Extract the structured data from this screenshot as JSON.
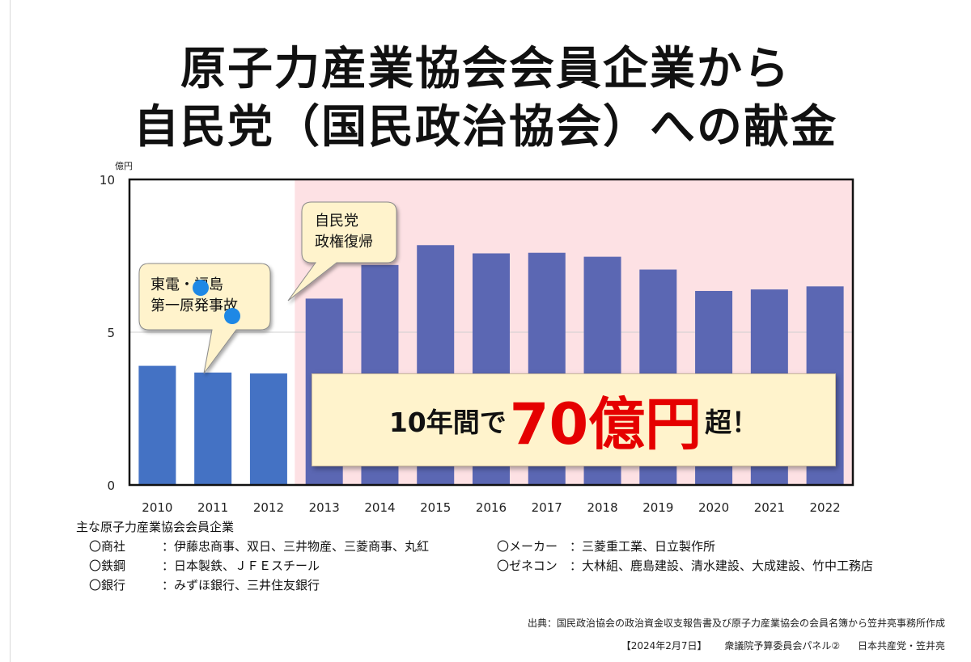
{
  "title": {
    "line1": "原子力産業協会会員企業から",
    "line2": "自民党（国民政治協会）への献金"
  },
  "chart_data": {
    "type": "bar",
    "unit_label": "億円",
    "categories": [
      "2010",
      "2011",
      "2012",
      "2013",
      "2014",
      "2015",
      "2016",
      "2017",
      "2018",
      "2019",
      "2020",
      "2021",
      "2022"
    ],
    "values": [
      3.9,
      3.68,
      3.65,
      6.1,
      7.2,
      7.85,
      7.58,
      7.6,
      7.47,
      7.05,
      6.35,
      6.4,
      6.5
    ],
    "ylim": [
      0,
      10
    ],
    "yticks": [
      0,
      5,
      10
    ],
    "bar_colors": {
      "pre_2013": "#4472c4",
      "post_2013": "#5b67b3"
    },
    "shaded_region": {
      "from_category": "2013",
      "color": "#fde1e4"
    },
    "grid": true,
    "annotations": [
      {
        "lines": [
          "東電・福島",
          "第一原発事故"
        ],
        "points_to": "2011"
      },
      {
        "lines": [
          "自民党",
          "政権復帰"
        ],
        "points_to": "2013"
      }
    ]
  },
  "callout": {
    "prefix": "10年間で",
    "amount": "70億円",
    "suffix": "超！"
  },
  "members": {
    "heading": "主な原子力産業協会会員企業",
    "rows": [
      [
        {
          "category": "〇商社",
          "companies": "：伊藤忠商事、双日、三井物産、三菱商事、丸紅"
        },
        {
          "category": "〇メーカー",
          "companies": "：三菱重工業、日立製作所"
        }
      ],
      [
        {
          "category": "〇鉄鋼",
          "companies": "：日本製鉄、ＪＦＥスチール"
        },
        {
          "category": "〇ゼネコン",
          "companies": "：大林組、鹿島建設、清水建設、大成建設、竹中工務店"
        }
      ],
      [
        {
          "category": "〇銀行",
          "companies": "：みずほ銀行、三井住友銀行"
        }
      ]
    ]
  },
  "source": "出典：国民政治協会の政治資金収支報告書及び原子力産業協会の会員名簿から笠井亮事務所作成",
  "footer": {
    "date": "【2024年2月7日】",
    "panel": "衆議院予算委員会パネル②",
    "author": "日本共産党・笠井亮"
  }
}
